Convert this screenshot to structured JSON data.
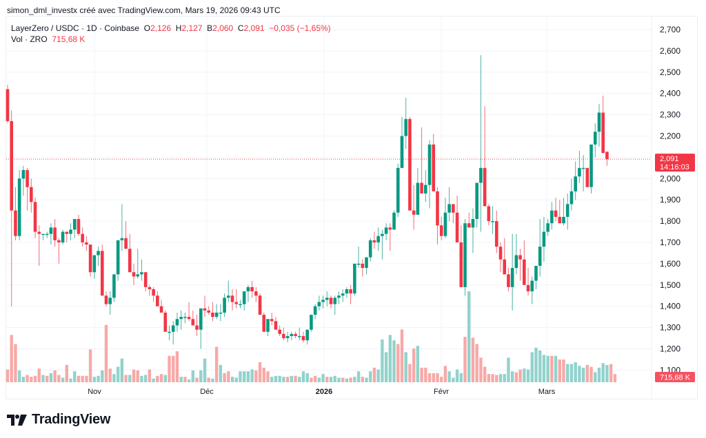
{
  "header": {
    "credit": "simon_dml_investx créé avec TradingView.com, Mars 19, 2026 09:43 UTC"
  },
  "legend": {
    "symbol": "LayerZero / USDC · 1D · Coinbase",
    "o_label": "O",
    "o_value": "2,126",
    "h_label": "H",
    "h_value": "2,127",
    "b_label": "B",
    "b_value": "2,060",
    "c_label": "C",
    "c_value": "2,091",
    "change": "−0,035 (−1,65%)",
    "vol_label": "Vol · ZRO",
    "vol_value": "715,68 K"
  },
  "price_tag": {
    "price": "2,091",
    "countdown": "14:16:03",
    "color": "#f23645"
  },
  "volume_tag": {
    "value": "715,68 K",
    "color": "#f7525f"
  },
  "brand": {
    "name": "TradingView"
  },
  "colors": {
    "up": "#089981",
    "down": "#f23645",
    "vol_up": "#92d2cc",
    "vol_down": "#f7a9a7",
    "grid": "#f0f3fa"
  },
  "chart_data": {
    "type": "candlestick",
    "title": "LayerZero / USDC · 1D · Coinbase",
    "ylabel": "Price (USDC)",
    "y_ticks": [
      "2,700",
      "2,600",
      "2,500",
      "2,400",
      "2,300",
      "2,200",
      "2,100",
      "2,000",
      "1,900",
      "1,800",
      "1,700",
      "1,600",
      "1,500",
      "1,400",
      "1,300",
      "1,200",
      "1,100"
    ],
    "ylim": [
      1.08,
      2.72
    ],
    "x_ticks": [
      {
        "label": "Nov",
        "x": 137,
        "bold": false
      },
      {
        "label": "Déc",
        "x": 300,
        "bold": false
      },
      {
        "label": "2026",
        "x": 470,
        "bold": true
      },
      {
        "label": "Févr",
        "x": 640,
        "bold": false
      },
      {
        "label": "Mars",
        "x": 793,
        "bold": false
      }
    ],
    "last_price": 2.091,
    "candles": [
      [
        2.42,
        2.44,
        2.26,
        2.27
      ],
      [
        2.27,
        2.32,
        1.4,
        1.85
      ],
      [
        1.85,
        1.96,
        1.71,
        1.73
      ],
      [
        1.73,
        2.04,
        1.71,
        2.0
      ],
      [
        2.0,
        2.06,
        1.92,
        2.04
      ],
      [
        2.04,
        2.05,
        1.85,
        1.96
      ],
      [
        1.96,
        2.0,
        1.84,
        1.89
      ],
      [
        1.89,
        1.91,
        1.72,
        1.75
      ],
      [
        1.75,
        1.78,
        1.59,
        1.74
      ],
      [
        1.74,
        1.73,
        1.71,
        1.74
      ],
      [
        1.74,
        1.75,
        1.72,
        1.74
      ],
      [
        1.74,
        1.79,
        1.69,
        1.77
      ],
      [
        1.77,
        1.81,
        1.68,
        1.71
      ],
      [
        1.71,
        1.72,
        1.6,
        1.7
      ],
      [
        1.7,
        1.76,
        1.69,
        1.75
      ],
      [
        1.75,
        1.74,
        1.7,
        1.74
      ],
      [
        1.74,
        1.79,
        1.71,
        1.76
      ],
      [
        1.76,
        1.8,
        1.72,
        1.81
      ],
      [
        1.81,
        1.83,
        1.73,
        1.74
      ],
      [
        1.74,
        1.77,
        1.68,
        1.7
      ],
      [
        1.7,
        1.73,
        1.66,
        1.69
      ],
      [
        1.69,
        1.67,
        1.54,
        1.56
      ],
      [
        1.56,
        1.61,
        1.53,
        1.64
      ],
      [
        1.64,
        1.68,
        1.59,
        1.66
      ],
      [
        1.66,
        1.69,
        1.5,
        1.45
      ],
      [
        1.45,
        1.47,
        1.4,
        1.41
      ],
      [
        1.41,
        1.47,
        1.36,
        1.44
      ],
      [
        1.44,
        1.55,
        1.42,
        1.55
      ],
      [
        1.55,
        1.65,
        1.52,
        1.71
      ],
      [
        1.71,
        1.88,
        1.66,
        1.72
      ],
      [
        1.72,
        1.8,
        1.68,
        1.67
      ],
      [
        1.67,
        1.74,
        1.57,
        1.56
      ],
      [
        1.56,
        1.6,
        1.5,
        1.54
      ],
      [
        1.54,
        1.67,
        1.53,
        1.55
      ],
      [
        1.55,
        1.62,
        1.52,
        1.56
      ],
      [
        1.56,
        1.54,
        1.47,
        1.49
      ],
      [
        1.49,
        1.5,
        1.45,
        1.48
      ],
      [
        1.48,
        1.49,
        1.42,
        1.45
      ],
      [
        1.45,
        1.47,
        1.4,
        1.4
      ],
      [
        1.4,
        1.43,
        1.37,
        1.37
      ],
      [
        1.37,
        1.38,
        1.34,
        1.28
      ],
      [
        1.28,
        1.31,
        1.24,
        1.28
      ],
      [
        1.28,
        1.33,
        1.22,
        1.31
      ],
      [
        1.31,
        1.37,
        1.28,
        1.34
      ],
      [
        1.34,
        1.38,
        1.29,
        1.35
      ],
      [
        1.35,
        1.37,
        1.32,
        1.35
      ],
      [
        1.35,
        1.42,
        1.33,
        1.34
      ],
      [
        1.34,
        1.38,
        1.31,
        1.31
      ],
      [
        1.31,
        1.36,
        1.26,
        1.29
      ],
      [
        1.29,
        1.39,
        1.2,
        1.39
      ],
      [
        1.39,
        1.45,
        1.35,
        1.38
      ],
      [
        1.38,
        1.4,
        1.36,
        1.37
      ],
      [
        1.37,
        1.42,
        1.33,
        1.35
      ],
      [
        1.35,
        1.41,
        1.34,
        1.37
      ],
      [
        1.37,
        1.41,
        1.33,
        1.37
      ],
      [
        1.37,
        1.46,
        1.35,
        1.44
      ],
      [
        1.44,
        1.52,
        1.42,
        1.45
      ],
      [
        1.45,
        1.48,
        1.38,
        1.42
      ],
      [
        1.42,
        1.48,
        1.39,
        1.41
      ],
      [
        1.41,
        1.43,
        1.39,
        1.41
      ],
      [
        1.41,
        1.47,
        1.38,
        1.47
      ],
      [
        1.47,
        1.5,
        1.42,
        1.49
      ],
      [
        1.49,
        1.52,
        1.44,
        1.47
      ],
      [
        1.47,
        1.49,
        1.42,
        1.45
      ],
      [
        1.45,
        1.46,
        1.36,
        1.36
      ],
      [
        1.36,
        1.37,
        1.3,
        1.28
      ],
      [
        1.28,
        1.32,
        1.26,
        1.34
      ],
      [
        1.34,
        1.37,
        1.31,
        1.33
      ],
      [
        1.33,
        1.35,
        1.3,
        1.29
      ],
      [
        1.29,
        1.31,
        1.26,
        1.27
      ],
      [
        1.27,
        1.3,
        1.24,
        1.25
      ],
      [
        1.25,
        1.28,
        1.23,
        1.26
      ],
      [
        1.26,
        1.28,
        1.24,
        1.27
      ],
      [
        1.27,
        1.28,
        1.25,
        1.26
      ],
      [
        1.26,
        1.3,
        1.24,
        1.26
      ],
      [
        1.26,
        1.28,
        1.23,
        1.24
      ],
      [
        1.24,
        1.28,
        1.22,
        1.29
      ],
      [
        1.29,
        1.36,
        1.28,
        1.36
      ],
      [
        1.36,
        1.41,
        1.34,
        1.4
      ],
      [
        1.4,
        1.45,
        1.38,
        1.42
      ],
      [
        1.42,
        1.45,
        1.39,
        1.43
      ],
      [
        1.43,
        1.47,
        1.4,
        1.44
      ],
      [
        1.44,
        1.45,
        1.39,
        1.41
      ],
      [
        1.41,
        1.45,
        1.36,
        1.44
      ],
      [
        1.44,
        1.47,
        1.41,
        1.45
      ],
      [
        1.45,
        1.48,
        1.42,
        1.46
      ],
      [
        1.46,
        1.49,
        1.44,
        1.48
      ],
      [
        1.48,
        1.5,
        1.41,
        1.46
      ],
      [
        1.46,
        1.57,
        1.45,
        1.6
      ],
      [
        1.6,
        1.68,
        1.58,
        1.6
      ],
      [
        1.6,
        1.62,
        1.54,
        1.58
      ],
      [
        1.58,
        1.63,
        1.55,
        1.63
      ],
      [
        1.63,
        1.72,
        1.61,
        1.71
      ],
      [
        1.71,
        1.75,
        1.67,
        1.7
      ],
      [
        1.7,
        1.77,
        1.66,
        1.73
      ],
      [
        1.73,
        1.76,
        1.62,
        1.74
      ],
      [
        1.74,
        1.79,
        1.71,
        1.77
      ],
      [
        1.77,
        1.79,
        1.66,
        1.76
      ],
      [
        1.76,
        1.85,
        1.78,
        1.84
      ],
      [
        1.84,
        2.07,
        1.82,
        2.05
      ],
      [
        2.05,
        2.29,
        2.12,
        2.2
      ],
      [
        2.2,
        2.38,
        2.14,
        2.28
      ],
      [
        2.28,
        2.29,
        1.88,
        1.85
      ],
      [
        1.85,
        1.97,
        1.76,
        1.83
      ],
      [
        1.83,
        2.05,
        1.85,
        1.98
      ],
      [
        1.98,
        2.24,
        1.98,
        1.93
      ],
      [
        1.93,
        2.04,
        1.89,
        1.97
      ],
      [
        1.97,
        2.18,
        1.86,
        2.16
      ],
      [
        2.16,
        2.21,
        1.97,
        1.94
      ],
      [
        1.94,
        1.96,
        1.69,
        1.78
      ],
      [
        1.78,
        1.82,
        1.71,
        1.73
      ],
      [
        1.73,
        1.91,
        1.72,
        1.84
      ],
      [
        1.84,
        1.96,
        1.8,
        1.88
      ],
      [
        1.88,
        1.86,
        1.79,
        1.84
      ],
      [
        1.84,
        1.92,
        1.78,
        1.7
      ],
      [
        1.7,
        1.78,
        1.58,
        1.49
      ],
      [
        1.49,
        1.81,
        1.45,
        1.79
      ],
      [
        1.79,
        1.84,
        1.77,
        1.77
      ],
      [
        1.77,
        1.86,
        1.65,
        1.81
      ],
      [
        1.81,
        1.96,
        1.77,
        1.98
      ],
      [
        1.98,
        2.58,
        1.75,
        2.05
      ],
      [
        2.05,
        2.34,
        1.93,
        1.87
      ],
      [
        1.87,
        1.88,
        1.78,
        1.8
      ],
      [
        1.8,
        1.87,
        1.74,
        1.8
      ],
      [
        1.8,
        1.85,
        1.65,
        1.68
      ],
      [
        1.68,
        1.7,
        1.56,
        1.62
      ],
      [
        1.62,
        1.72,
        1.59,
        1.55
      ],
      [
        1.55,
        1.58,
        1.47,
        1.49
      ],
      [
        1.49,
        1.74,
        1.38,
        1.58
      ],
      [
        1.58,
        1.74,
        1.55,
        1.64
      ],
      [
        1.64,
        1.67,
        1.52,
        1.62
      ],
      [
        1.62,
        1.71,
        1.51,
        1.5
      ],
      [
        1.5,
        1.58,
        1.45,
        1.47
      ],
      [
        1.47,
        1.54,
        1.41,
        1.52
      ],
      [
        1.52,
        1.56,
        1.48,
        1.59
      ],
      [
        1.59,
        1.81,
        1.54,
        1.68
      ],
      [
        1.68,
        1.82,
        1.61,
        1.75
      ],
      [
        1.75,
        1.81,
        1.73,
        1.79
      ],
      [
        1.79,
        1.89,
        1.76,
        1.85
      ],
      [
        1.85,
        1.91,
        1.8,
        1.82
      ],
      [
        1.82,
        1.9,
        1.8,
        1.79
      ],
      [
        1.79,
        1.91,
        1.78,
        1.82
      ],
      [
        1.82,
        1.93,
        1.76,
        1.88
      ],
      [
        1.88,
        2.0,
        1.85,
        1.94
      ],
      [
        1.94,
        2.08,
        1.9,
        2.01
      ],
      [
        2.01,
        2.13,
        1.98,
        2.05
      ],
      [
        2.05,
        2.11,
        1.94,
        2.05
      ],
      [
        2.05,
        2.05,
        1.96,
        1.96
      ],
      [
        1.96,
        2.13,
        1.93,
        2.16
      ],
      [
        2.16,
        2.26,
        2.1,
        2.22
      ],
      [
        2.22,
        2.35,
        2.15,
        2.31
      ],
      [
        2.31,
        2.39,
        2.2,
        2.12
      ],
      [
        2.126,
        2.127,
        2.06,
        2.091
      ]
    ],
    "volumes": [
      [
        0.14,
        "d"
      ],
      [
        0.52,
        "d"
      ],
      [
        0.42,
        "d"
      ],
      [
        0.13,
        "u"
      ],
      [
        0.06,
        "u"
      ],
      [
        0.08,
        "d"
      ],
      [
        0.06,
        "d"
      ],
      [
        0.07,
        "d"
      ],
      [
        0.15,
        "d"
      ],
      [
        0.08,
        "u"
      ],
      [
        0.07,
        "d"
      ],
      [
        0.1,
        "u"
      ],
      [
        0.13,
        "d"
      ],
      [
        0.08,
        "d"
      ],
      [
        0.05,
        "u"
      ],
      [
        0.19,
        "d"
      ],
      [
        0.04,
        "u"
      ],
      [
        0.12,
        "u"
      ],
      [
        0.07,
        "d"
      ],
      [
        0.07,
        "d"
      ],
      [
        0.07,
        "d"
      ],
      [
        0.36,
        "d"
      ],
      [
        0.06,
        "u"
      ],
      [
        0.07,
        "u"
      ],
      [
        0.13,
        "u"
      ],
      [
        0.63,
        "d"
      ],
      [
        0.15,
        "d"
      ],
      [
        0.09,
        "u"
      ],
      [
        0.17,
        "u"
      ],
      [
        0.26,
        "u"
      ],
      [
        0.08,
        "d"
      ],
      [
        0.08,
        "u"
      ],
      [
        0.14,
        "d"
      ],
      [
        0.13,
        "d"
      ],
      [
        0.07,
        "u"
      ],
      [
        0.08,
        "u"
      ],
      [
        0.14,
        "d"
      ],
      [
        0.04,
        "u"
      ],
      [
        0.07,
        "d"
      ],
      [
        0.09,
        "d"
      ],
      [
        0.08,
        "u"
      ],
      [
        0.29,
        "d"
      ],
      [
        0.29,
        "d"
      ],
      [
        0.34,
        "d"
      ],
      [
        0.06,
        "u"
      ],
      [
        0.06,
        "d"
      ],
      [
        0.03,
        "u"
      ],
      [
        0.13,
        "u"
      ],
      [
        0.05,
        "d"
      ],
      [
        0.13,
        "u"
      ],
      [
        0.26,
        "u"
      ],
      [
        0.05,
        "d"
      ],
      [
        0.04,
        "u"
      ],
      [
        0.39,
        "d"
      ],
      [
        0.19,
        "u"
      ],
      [
        0.1,
        "d"
      ],
      [
        0.12,
        "d"
      ],
      [
        0.06,
        "u"
      ],
      [
        0.05,
        "u"
      ],
      [
        0.12,
        "u"
      ],
      [
        0.12,
        "u"
      ],
      [
        0.12,
        "u"
      ],
      [
        0.14,
        "u"
      ],
      [
        0.13,
        "d"
      ],
      [
        0.22,
        "d"
      ],
      [
        0.16,
        "d"
      ],
      [
        0.12,
        "d"
      ],
      [
        0.06,
        "u"
      ],
      [
        0.07,
        "u"
      ],
      [
        0.07,
        "u"
      ],
      [
        0.06,
        "u"
      ],
      [
        0.06,
        "d"
      ],
      [
        0.07,
        "u"
      ],
      [
        0.07,
        "d"
      ],
      [
        0.06,
        "u"
      ],
      [
        0.12,
        "u"
      ],
      [
        0.1,
        "u"
      ],
      [
        0.05,
        "d"
      ],
      [
        0.07,
        "d"
      ],
      [
        0.05,
        "u"
      ],
      [
        0.09,
        "u"
      ],
      [
        0.06,
        "d"
      ],
      [
        0.06,
        "u"
      ],
      [
        0.07,
        "u"
      ],
      [
        0.05,
        "u"
      ],
      [
        0.05,
        "d"
      ],
      [
        0.04,
        "u"
      ],
      [
        0.05,
        "d"
      ],
      [
        0.06,
        "u"
      ],
      [
        0.12,
        "u"
      ],
      [
        0.06,
        "d"
      ],
      [
        0.05,
        "u"
      ],
      [
        0.12,
        "u"
      ],
      [
        0.16,
        "d"
      ],
      [
        0.14,
        "u"
      ],
      [
        0.47,
        "u"
      ],
      [
        0.33,
        "u"
      ],
      [
        0.52,
        "u"
      ],
      [
        0.46,
        "u"
      ],
      [
        0.42,
        "d"
      ],
      [
        0.58,
        "d"
      ],
      [
        0.33,
        "u"
      ],
      [
        0.2,
        "d"
      ],
      [
        0.37,
        "d"
      ],
      [
        0.4,
        "u"
      ],
      [
        0.16,
        "d"
      ],
      [
        0.16,
        "d"
      ],
      [
        0.1,
        "d"
      ],
      [
        0.1,
        "d"
      ],
      [
        0.1,
        "d"
      ],
      [
        0.06,
        "d"
      ],
      [
        0.18,
        "d"
      ],
      [
        0.12,
        "u"
      ],
      [
        0.05,
        "u"
      ],
      [
        0.14,
        "u"
      ],
      [
        0.1,
        "u"
      ],
      [
        0.5,
        "d"
      ],
      [
        1.0,
        "u"
      ],
      [
        0.49,
        "d"
      ],
      [
        0.42,
        "d"
      ],
      [
        0.27,
        "d"
      ],
      [
        0.17,
        "d"
      ],
      [
        0.09,
        "d"
      ],
      [
        0.09,
        "d"
      ],
      [
        0.08,
        "d"
      ],
      [
        0.09,
        "u"
      ],
      [
        0.09,
        "u"
      ],
      [
        0.27,
        "u"
      ],
      [
        0.12,
        "u"
      ],
      [
        0.11,
        "d"
      ],
      [
        0.14,
        "d"
      ],
      [
        0.15,
        "u"
      ],
      [
        0.14,
        "u"
      ],
      [
        0.33,
        "u"
      ],
      [
        0.38,
        "u"
      ],
      [
        0.35,
        "u"
      ],
      [
        0.3,
        "u"
      ],
      [
        0.29,
        "u"
      ],
      [
        0.29,
        "d"
      ],
      [
        0.29,
        "u"
      ],
      [
        0.25,
        "d"
      ],
      [
        0.25,
        "d"
      ],
      [
        0.2,
        "u"
      ],
      [
        0.2,
        "u"
      ],
      [
        0.22,
        "u"
      ],
      [
        0.18,
        "u"
      ],
      [
        0.16,
        "u"
      ],
      [
        0.19,
        "d"
      ],
      [
        0.17,
        "d"
      ],
      [
        0.11,
        "u"
      ],
      [
        0.16,
        "u"
      ],
      [
        0.21,
        "u"
      ],
      [
        0.19,
        "u"
      ],
      [
        0.2,
        "d"
      ],
      [
        0.09,
        "d"
      ]
    ],
    "volume_baseline_y": 555,
    "volume_max_height": 132
  }
}
